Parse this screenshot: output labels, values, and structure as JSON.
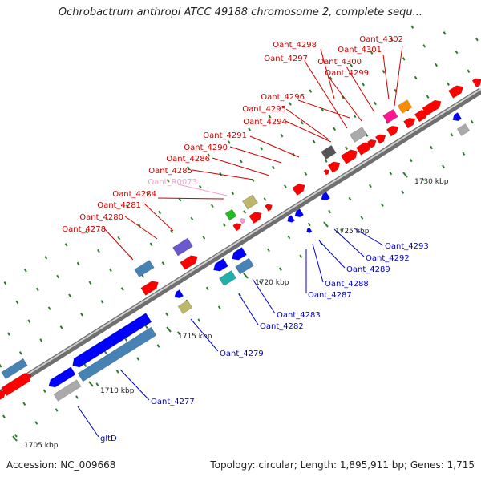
{
  "title": "Ochrobactrum anthropi ATCC 49188 chromosome 2, complete sequ...",
  "footer": {
    "accession": "Accession: NC_009668",
    "summary": "Topology: circular; Length: 1,895,911 bp; Genes: 1,715"
  },
  "colors": {
    "forward_gene": "#ff0000",
    "reverse_gene": "#0000ff",
    "rna_gene": "#ff9bd6",
    "forward_label": "#cc0000",
    "reverse_label": "#0000cc",
    "rna_label": "#f0a0d0",
    "backbone": "#8c8c8c",
    "tick": "#2c7a2c",
    "cog_steel": "#4682b4",
    "cog_slate": "#6a5acd",
    "cog_khaki": "#bdb76b",
    "cog_cyan": "#20b2aa",
    "cog_green": "#22bb22",
    "cog_orange": "#ff8c00",
    "cog_magenta": "#ff1493",
    "cog_gray": "#aaaaaa",
    "cog_darkgray": "#555555"
  },
  "ruler": [
    "1705 kbp",
    "1710 kbp",
    "1715 kbp",
    "1720 kbp",
    "1725 kbp",
    "1730 kbp"
  ],
  "forward_labels": [
    "Oant_4278",
    "Oant_4280",
    "Oant_4281",
    "Oant_4284",
    "Oant_R0073",
    "Oant_4285",
    "Oant_4286",
    "Oant_4290",
    "Oant_4291",
    "Oant_4294",
    "Oant_4295",
    "Oant_4296",
    "Oant_4297",
    "Oant_4298",
    "Oant_4299",
    "Oant_4300",
    "Oant_4301",
    "Oant_4302"
  ],
  "reverse_labels": [
    "gltD",
    "Oant_4277",
    "Oant_4279",
    "Oant_4282",
    "Oant_4283",
    "Oant_4287",
    "Oant_4288",
    "Oant_4289",
    "Oant_4292",
    "Oant_4293"
  ]
}
